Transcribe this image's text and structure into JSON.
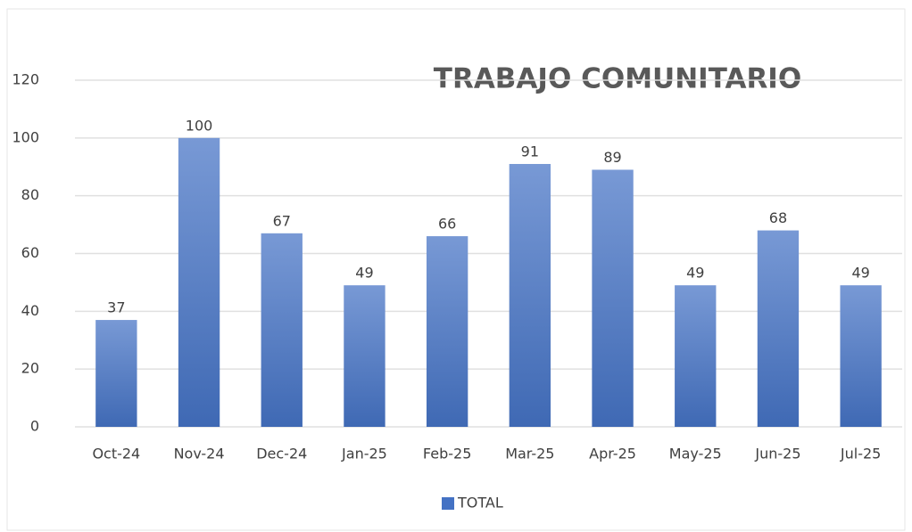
{
  "chart_data": {
    "type": "bar",
    "title": "TRABAJO COMUNITARIO",
    "categories": [
      "Oct-24",
      "Nov-24",
      "Dec-24",
      "Jan-25",
      "Feb-25",
      "Mar-25",
      "Apr-25",
      "May-25",
      "Jun-25",
      "Jul-25"
    ],
    "series": [
      {
        "name": "TOTAL",
        "color": "#4472c4",
        "values": [
          37,
          100,
          67,
          49,
          66,
          91,
          89,
          49,
          68,
          49
        ]
      }
    ],
    "ylim": [
      0,
      120
    ],
    "yticks": [
      0,
      20,
      40,
      60,
      80,
      100,
      120
    ],
    "grid": true,
    "legend": "bottom"
  }
}
